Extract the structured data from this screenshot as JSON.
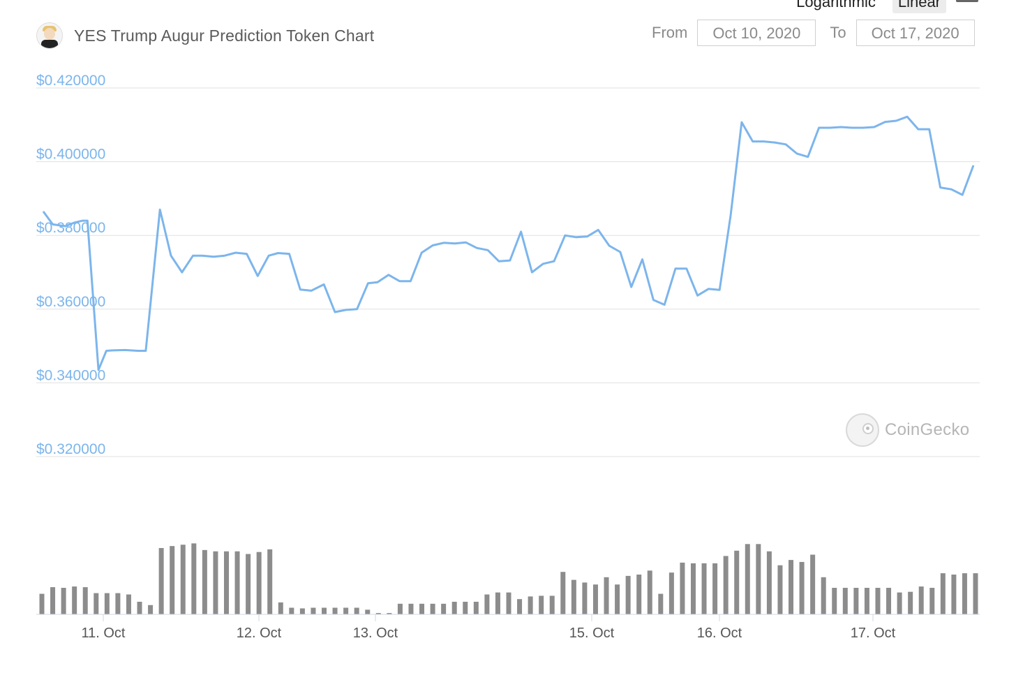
{
  "scale": {
    "log_label": "Logarithmic",
    "linear_label": "Linear",
    "active": "Linear"
  },
  "header": {
    "title": "YES Trump Augur Prediction Token Chart"
  },
  "range": {
    "from_label": "From",
    "from_value": "Oct 10, 2020",
    "to_label": "To",
    "to_value": "Oct 17, 2020"
  },
  "watermark": "CoinGecko",
  "colors": {
    "price_line": "#7cb5ec",
    "volume_bar": "#8c8c8c",
    "grid": "#e0e0e0",
    "axis_label": "#7cb5ec"
  },
  "chart_data": {
    "type": "line",
    "title": "YES Trump Augur Prediction Token Chart",
    "ylim": [
      0.32,
      0.42
    ],
    "y_tick_labels": [
      "$0.420000",
      "$0.400000",
      "$0.380000",
      "$0.360000",
      "$0.340000",
      "$0.320000"
    ],
    "y_ticks": [
      0.42,
      0.4,
      0.38,
      0.36,
      0.34,
      0.32
    ],
    "x_range_days": [
      10.6,
      17.66
    ],
    "x_tick_labels": [
      "11. Oct",
      "12. Oct",
      "13. Oct",
      "15. Oct",
      "16. Oct",
      "17. Oct"
    ],
    "x_ticks": [
      11.0,
      12.0,
      12.75,
      14.14,
      14.96,
      15.95
    ],
    "grid": true,
    "series": [
      {
        "price": [
          [
            10.6,
            0.3865
          ],
          [
            10.66,
            0.383
          ],
          [
            10.74,
            0.3825
          ],
          [
            10.8,
            0.3835
          ],
          [
            10.85,
            0.384
          ],
          [
            10.88,
            0.384
          ],
          [
            10.95,
            0.3435
          ],
          [
            11.0,
            0.3487
          ],
          [
            11.04,
            0.3488
          ],
          [
            11.12,
            0.3489
          ],
          [
            11.2,
            0.3487
          ],
          [
            11.25,
            0.3487
          ],
          [
            11.34,
            0.387
          ],
          [
            11.41,
            0.3745
          ],
          [
            11.48,
            0.37
          ],
          [
            11.55,
            0.3745
          ],
          [
            11.61,
            0.3745
          ],
          [
            11.68,
            0.3742
          ],
          [
            11.75,
            0.3745
          ],
          [
            11.82,
            0.3753
          ],
          [
            11.89,
            0.375
          ],
          [
            11.96,
            0.369
          ],
          [
            12.03,
            0.3745
          ],
          [
            12.09,
            0.3752
          ],
          [
            12.16,
            0.375
          ],
          [
            12.23,
            0.3653
          ],
          [
            12.3,
            0.365
          ],
          [
            12.38,
            0.3667
          ],
          [
            12.45,
            0.3592
          ],
          [
            12.52,
            0.3598
          ],
          [
            12.59,
            0.36
          ],
          [
            12.66,
            0.367
          ],
          [
            12.72,
            0.3673
          ],
          [
            12.79,
            0.3693
          ],
          [
            12.86,
            0.3676
          ],
          [
            12.93,
            0.3676
          ],
          [
            13.0,
            0.3753
          ],
          [
            13.07,
            0.3773
          ],
          [
            13.14,
            0.378
          ],
          [
            13.21,
            0.3778
          ],
          [
            13.28,
            0.3781
          ],
          [
            13.35,
            0.3766
          ],
          [
            13.42,
            0.376
          ],
          [
            13.49,
            0.373
          ],
          [
            13.56,
            0.3732
          ],
          [
            13.63,
            0.381
          ],
          [
            13.7,
            0.37
          ],
          [
            13.77,
            0.3723
          ],
          [
            13.84,
            0.373
          ],
          [
            13.91,
            0.38
          ],
          [
            13.98,
            0.3795
          ],
          [
            14.05,
            0.3797
          ],
          [
            14.12,
            0.3815
          ],
          [
            14.19,
            0.3772
          ],
          [
            14.26,
            0.3755
          ],
          [
            14.33,
            0.366
          ],
          [
            14.4,
            0.3735
          ],
          [
            14.47,
            0.3625
          ],
          [
            14.54,
            0.3612
          ],
          [
            14.61,
            0.371
          ],
          [
            14.68,
            0.371
          ],
          [
            14.75,
            0.3637
          ],
          [
            14.82,
            0.3655
          ],
          [
            14.89,
            0.3652
          ],
          [
            14.96,
            0.3855
          ],
          [
            15.03,
            0.4107
          ],
          [
            15.1,
            0.4055
          ],
          [
            15.17,
            0.4055
          ],
          [
            15.24,
            0.4052
          ],
          [
            15.31,
            0.4047
          ],
          [
            15.38,
            0.4022
          ],
          [
            15.45,
            0.4013
          ],
          [
            15.52,
            0.4092
          ],
          [
            15.59,
            0.4092
          ],
          [
            15.66,
            0.4094
          ],
          [
            15.73,
            0.4092
          ],
          [
            15.8,
            0.4092
          ],
          [
            15.87,
            0.4094
          ],
          [
            15.94,
            0.4108
          ],
          [
            16.01,
            0.4111
          ],
          [
            16.08,
            0.4122
          ],
          [
            16.15,
            0.4088
          ],
          [
            16.22,
            0.4088
          ],
          [
            16.29,
            0.393
          ],
          [
            16.36,
            0.3925
          ],
          [
            16.43,
            0.391
          ],
          [
            16.5,
            0.399
          ]
        ],
        "volume_relative": [
          0.31,
          0.41,
          0.4,
          0.42,
          0.41,
          0.32,
          0.32,
          0.32,
          0.3,
          0.19,
          0.14,
          1.0,
          1.03,
          1.05,
          1.07,
          0.97,
          0.95,
          0.95,
          0.95,
          0.91,
          0.94,
          0.98,
          0.18,
          0.1,
          0.09,
          0.1,
          0.1,
          0.1,
          0.1,
          0.1,
          0.07,
          0.02,
          0.02,
          0.16,
          0.16,
          0.16,
          0.16,
          0.16,
          0.19,
          0.19,
          0.19,
          0.3,
          0.33,
          0.33,
          0.23,
          0.27,
          0.28,
          0.28,
          0.64,
          0.52,
          0.48,
          0.45,
          0.56,
          0.45,
          0.58,
          0.6,
          0.66,
          0.31,
          0.63,
          0.78,
          0.77,
          0.77,
          0.77,
          0.88,
          0.96,
          1.06,
          1.06,
          0.95,
          0.74,
          0.82,
          0.79,
          0.9,
          0.56,
          0.4,
          0.4,
          0.4,
          0.4,
          0.4,
          0.4,
          0.33,
          0.34,
          0.42,
          0.4,
          0.62,
          0.6,
          0.62,
          0.62
        ]
      }
    ]
  }
}
